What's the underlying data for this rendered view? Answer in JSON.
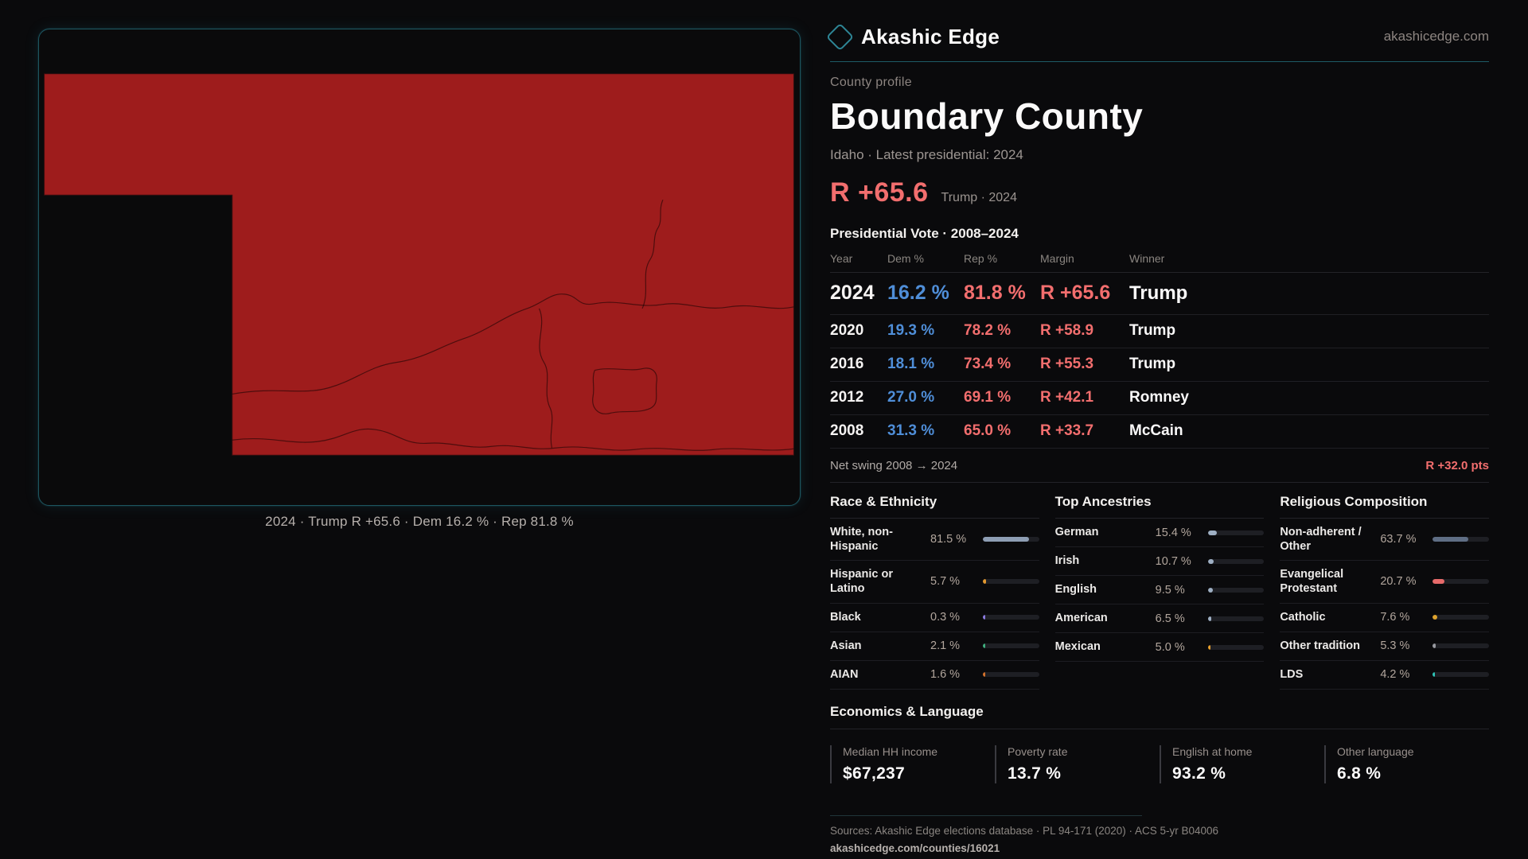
{
  "colors": {
    "accent_teal": "#2e8696",
    "accent_teal_dim": "#1d5660",
    "dem_blue": "#4f8ed8",
    "rep_red": "#f26e6e",
    "map_red": "#9e1c1c",
    "bar_track": "#1e1f24"
  },
  "header": {
    "brand": "Akashic Edge",
    "site": "akashicedge.com"
  },
  "profile": {
    "eyebrow": "County profile",
    "title": "Boundary County",
    "subtitle": "Idaho · Latest presidential: 2024",
    "margin": "R +65.6",
    "margin_note": "Trump · 2024"
  },
  "map": {
    "caption": "2024 · Trump R +65.6 · Dem 16.2 % · Rep 81.8 %"
  },
  "table": {
    "title": "Presidential Vote · 2008–2024",
    "columns": [
      "Year",
      "Dem %",
      "Rep %",
      "Margin",
      "Winner"
    ],
    "rows": [
      {
        "year": "2024",
        "dem": "16.2 %",
        "rep": "81.8 %",
        "margin": "R +65.6",
        "winner": "Trump"
      },
      {
        "year": "2020",
        "dem": "19.3 %",
        "rep": "78.2 %",
        "margin": "R +58.9",
        "winner": "Trump"
      },
      {
        "year": "2016",
        "dem": "18.1 %",
        "rep": "73.4 %",
        "margin": "R +55.3",
        "winner": "Trump"
      },
      {
        "year": "2012",
        "dem": "27.0 %",
        "rep": "69.1 %",
        "margin": "R +42.1",
        "winner": "Romney"
      },
      {
        "year": "2008",
        "dem": "31.3 %",
        "rep": "65.0 %",
        "margin": "R +33.7",
        "winner": "McCain"
      }
    ]
  },
  "net_swing": {
    "label": "Net swing 2008 → 2024",
    "value": "R +32.0 pts"
  },
  "sections": {
    "race": {
      "title": "Race & Ethnicity",
      "rows": [
        {
          "label": "White, non-Hispanic",
          "value": "81.5 %",
          "pct": 81.5,
          "color": "#8e9eb4"
        },
        {
          "label": "Hispanic or Latino",
          "value": "5.7 %",
          "pct": 5.7,
          "color": "#e2982f"
        },
        {
          "label": "Black",
          "value": "0.3 %",
          "pct": 0.3,
          "color": "#8b7bdf"
        },
        {
          "label": "Asian",
          "value": "2.1 %",
          "pct": 2.1,
          "color": "#3fae7e"
        },
        {
          "label": "AIAN",
          "value": "1.6 %",
          "pct": 1.6,
          "color": "#d3722c"
        }
      ]
    },
    "ancestry": {
      "title": "Top Ancestries",
      "rows": [
        {
          "label": "German",
          "value": "15.4 %",
          "pct": 15.4,
          "color": "#9fb0c4"
        },
        {
          "label": "Irish",
          "value": "10.7 %",
          "pct": 10.7,
          "color": "#9fb0c4"
        },
        {
          "label": "English",
          "value": "9.5 %",
          "pct": 9.5,
          "color": "#9fb0c4"
        },
        {
          "label": "American",
          "value": "6.5 %",
          "pct": 6.5,
          "color": "#9fb0c4"
        },
        {
          "label": "Mexican",
          "value": "5.0 %",
          "pct": 5.0,
          "color": "#e8a02c"
        }
      ]
    },
    "religion": {
      "title": "Religious Composition",
      "rows": [
        {
          "label": "Non-adherent / Other",
          "value": "63.7 %",
          "pct": 63.7,
          "color": "#5f6e85"
        },
        {
          "label": "Evangelical Protestant",
          "value": "20.7 %",
          "pct": 20.7,
          "color": "#e66a6a"
        },
        {
          "label": "Catholic",
          "value": "7.6 %",
          "pct": 7.6,
          "color": "#dfa32e"
        },
        {
          "label": "Other tradition",
          "value": "5.3 %",
          "pct": 5.3,
          "color": "#98999f"
        },
        {
          "label": "LDS",
          "value": "4.2 %",
          "pct": 4.2,
          "color": "#2ec4b6"
        }
      ]
    }
  },
  "economics": {
    "title": "Economics & Language",
    "stats": [
      {
        "label": "Median HH income",
        "value": "$67,237"
      },
      {
        "label": "Poverty rate",
        "value": "13.7 %"
      },
      {
        "label": "English at home",
        "value": "93.2 %"
      },
      {
        "label": "Other language",
        "value": "6.8 %"
      }
    ]
  },
  "footer": {
    "sources": "Sources: Akashic Edge elections database · PL 94-171 (2020) · ACS 5-yr B04006",
    "link": "akashicedge.com/counties/16021"
  }
}
